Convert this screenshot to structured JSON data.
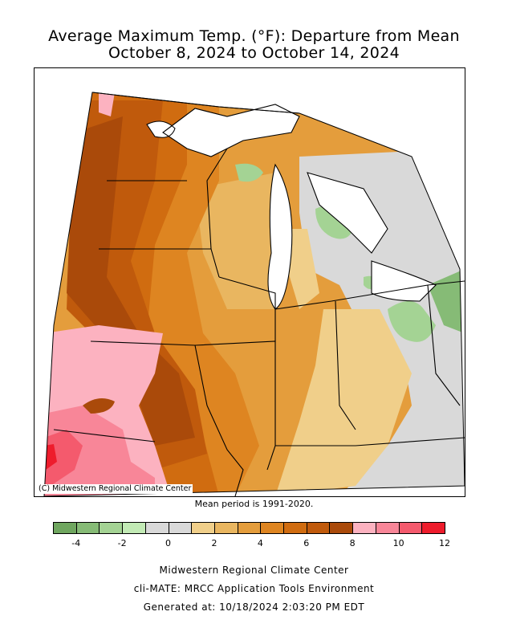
{
  "title_line1": "Average Maximum Temp. (°F): Departure from Mean",
  "title_line2": "October 8, 2024 to October 14, 2024",
  "copyright": "(C) Midwestern Regional Climate Center",
  "mean_period": "Mean period is 1991-2020.",
  "legend": {
    "colors": [
      "#6fa65f",
      "#86bb76",
      "#a4d394",
      "#c2eab5",
      "#d9d9d9",
      "#d9d9d9",
      "#f0cf8a",
      "#e9b660",
      "#e49d3c",
      "#de8521",
      "#d06c10",
      "#c05a0c",
      "#aa4a0a",
      "#fcb2c0",
      "#f88698",
      "#f45a6d",
      "#ee1c2c"
    ],
    "ticks": [
      "-4",
      "-2",
      "0",
      "2",
      "4",
      "6",
      "8",
      "10",
      "12"
    ]
  },
  "footer": {
    "line1": "Midwestern Regional Climate Center",
    "line2": "cli-MATE: MRCC Application Tools Environment",
    "line3": "Generated at: 10/18/2024 2:03:20 PM EDT"
  }
}
